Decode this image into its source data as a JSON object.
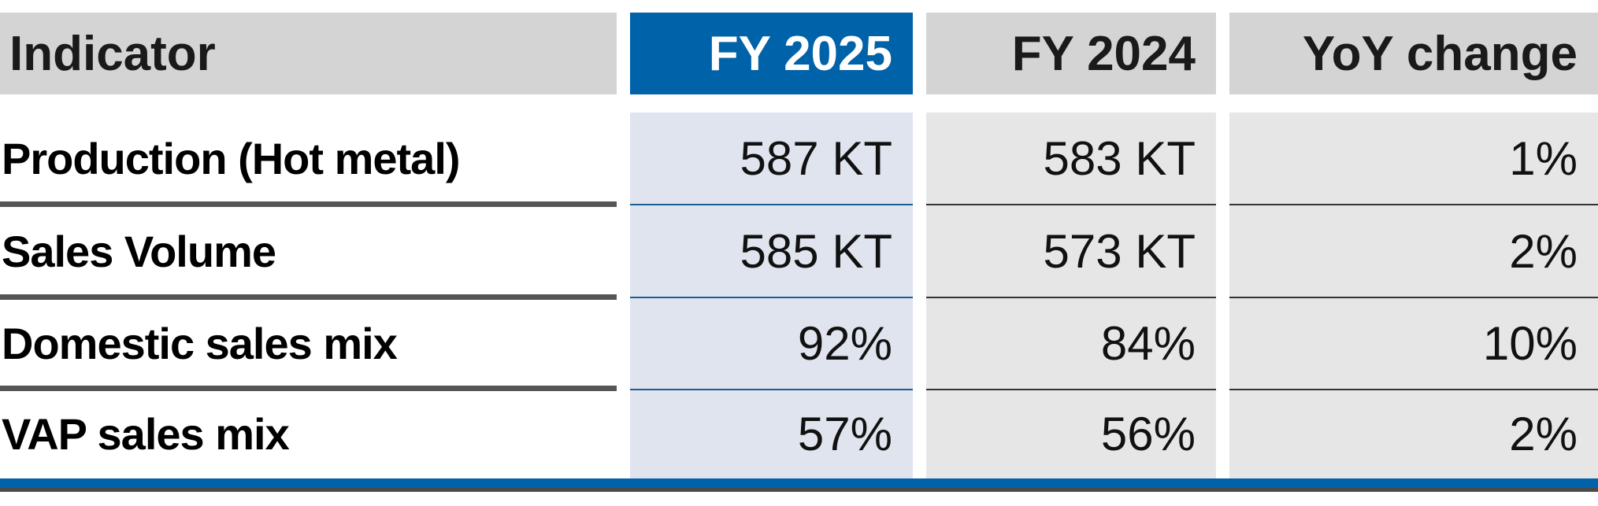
{
  "table": {
    "headers": {
      "indicator": "Indicator",
      "fy2025": "FY 2025",
      "fy2024": "FY 2024",
      "yoy": "YoY change"
    },
    "rows": [
      {
        "label": "Production (Hot metal)",
        "fy2025": "587 KT",
        "fy2024": "583 KT",
        "yoy": "1%"
      },
      {
        "label": "Sales Volume",
        "fy2025": "585 KT",
        "fy2024": "573 KT",
        "yoy": "2%"
      },
      {
        "label": "Domestic sales mix",
        "fy2025": "92%",
        "fy2024": "84%",
        "yoy": "10%"
      },
      {
        "label": "VAP sales mix",
        "fy2025": "57%",
        "fy2024": "56%",
        "yoy": "2%"
      }
    ],
    "colors": {
      "accent": "#0062a8",
      "header_bg": "#d4d4d4",
      "fy2025_col_bg": "#e0e4ee",
      "other_col_bg": "#e6e6e6"
    }
  }
}
